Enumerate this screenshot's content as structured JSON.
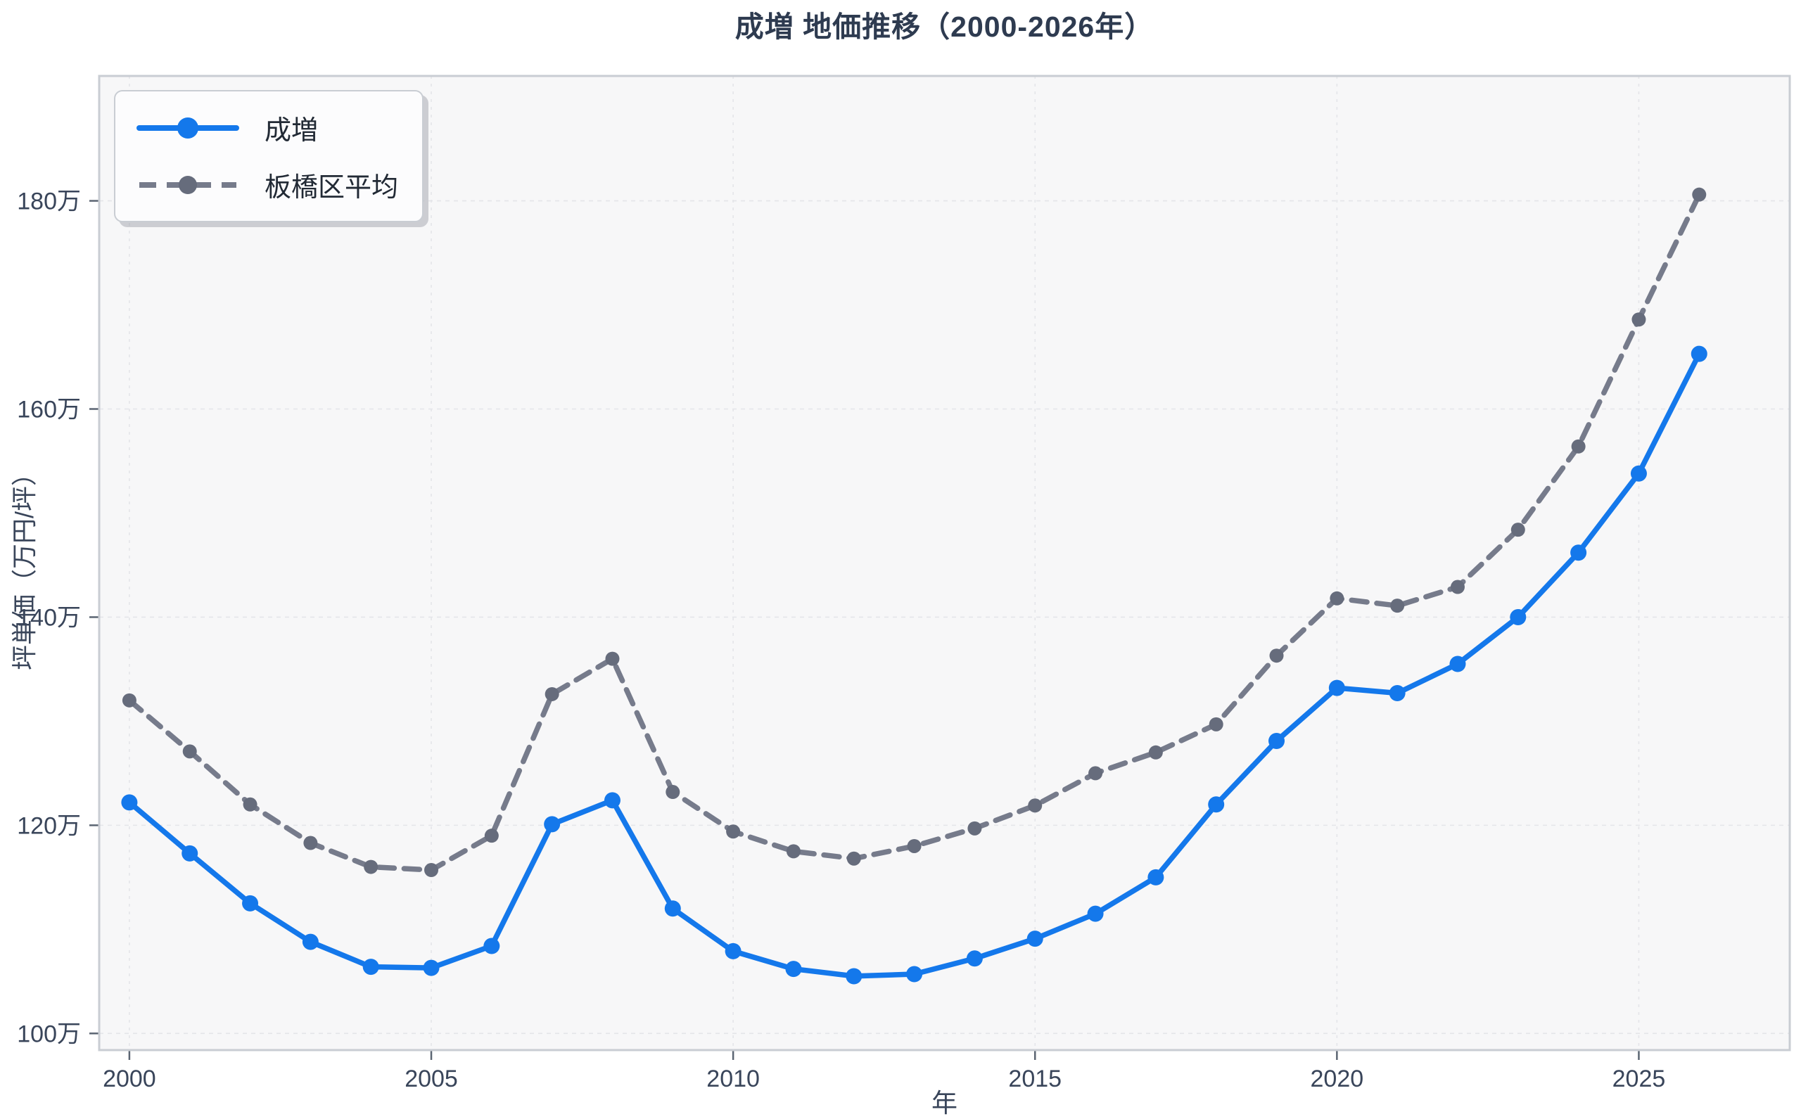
{
  "chart_data": {
    "type": "line",
    "title": "成増 地価推移（2000-2026年）",
    "xlabel": "年",
    "ylabel": "坪単価（万円/坪）",
    "x": [
      2000,
      2001,
      2002,
      2003,
      2004,
      2005,
      2006,
      2007,
      2008,
      2009,
      2010,
      2011,
      2012,
      2013,
      2014,
      2015,
      2016,
      2017,
      2018,
      2019,
      2020,
      2021,
      2022,
      2023,
      2024,
      2025,
      2026
    ],
    "series": [
      {
        "name": "成増",
        "color": "#1478EB",
        "marker_color": "#1478EB",
        "style": "solid",
        "marker": "circle",
        "values": [
          122.2,
          117.3,
          112.5,
          108.8,
          106.4,
          106.3,
          108.4,
          120.1,
          122.4,
          112.0,
          107.9,
          106.2,
          105.5,
          105.7,
          107.2,
          109.1,
          111.5,
          115.0,
          122.0,
          128.1,
          133.2,
          132.7,
          135.5,
          140.0,
          146.2,
          153.8,
          165.3
        ]
      },
      {
        "name": "板橋区平均",
        "color": "#767B8B",
        "marker_color": "#666C7C",
        "style": "dashed",
        "marker": "circle",
        "values": [
          132.0,
          127.1,
          122.0,
          118.3,
          116.0,
          115.7,
          119.0,
          132.6,
          136.0,
          123.2,
          119.4,
          117.5,
          116.8,
          118.0,
          119.7,
          121.9,
          125.0,
          127.0,
          129.7,
          136.3,
          141.8,
          141.1,
          142.9,
          148.4,
          156.4,
          168.6,
          180.6
        ]
      }
    ],
    "xlim": [
      1999.5,
      2027.5
    ],
    "ylim": [
      98.4,
      192.0
    ],
    "xticks": {
      "values": [
        2000,
        2005,
        2010,
        2015,
        2020,
        2025
      ],
      "labels": [
        "2000",
        "2005",
        "2010",
        "2015",
        "2020",
        "2025"
      ]
    },
    "yticks": {
      "values": [
        100,
        120,
        140,
        160,
        180
      ],
      "labels": [
        "100万",
        "120万",
        "140万",
        "160万",
        "180万"
      ]
    },
    "grid": true,
    "legend_position": "upper left",
    "colors": {
      "figure_bg": "#FFFFFF",
      "plot_bg": "#F7F7F8",
      "grid": "#E4E5E9",
      "spine": "#C9CDD3",
      "tick": "#5B6572",
      "tick_label": "#39455A",
      "title": "#2E3B50"
    }
  }
}
